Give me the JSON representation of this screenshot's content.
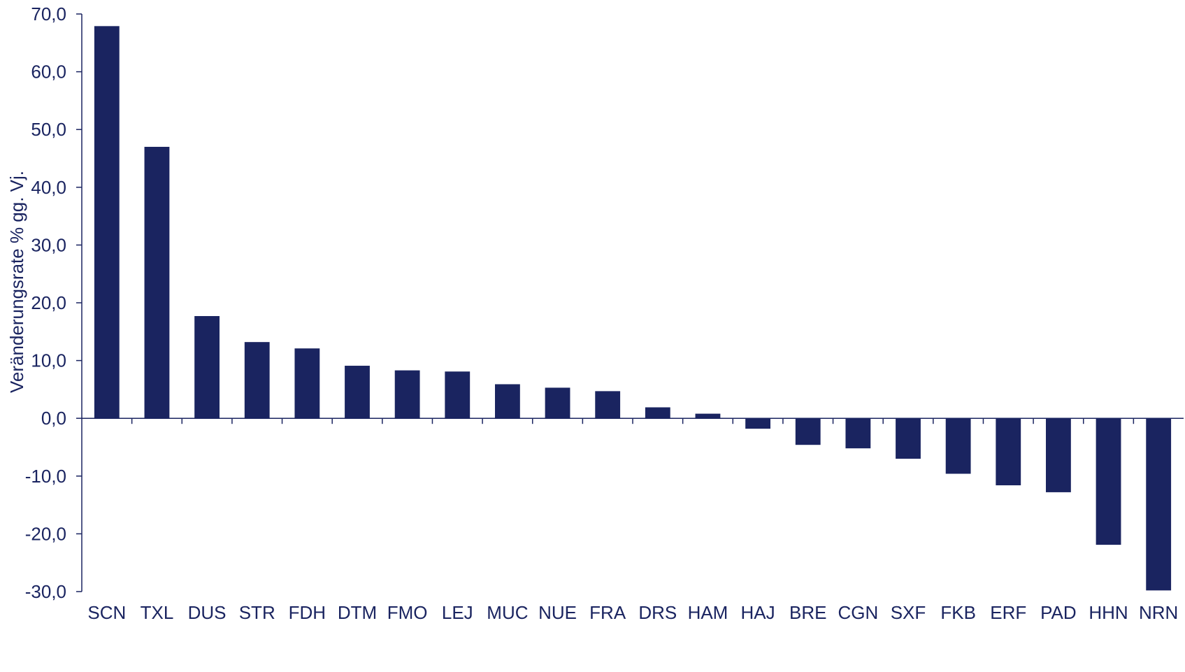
{
  "chart_data": {
    "type": "bar",
    "xlabel": "",
    "ylabel": "Veränderungsrate % gg. Vj.",
    "ylim": [
      -30,
      70
    ],
    "yticks": [
      -30,
      -20,
      -10,
      0,
      10,
      20,
      30,
      40,
      50,
      60,
      70
    ],
    "ytick_labels": [
      "-30,0",
      "-20,0",
      "-10,0",
      "0,0",
      "10,0",
      "20,0",
      "30,0",
      "40,0",
      "50,0",
      "60,0",
      "70,0"
    ],
    "grid": false,
    "categories": [
      "SCN",
      "TXL",
      "DUS",
      "STR",
      "FDH",
      "DTM",
      "FMO",
      "LEJ",
      "MUC",
      "NUE",
      "FRA",
      "DRS",
      "HAM",
      "HAJ",
      "BRE",
      "CGN",
      "SXF",
      "FKB",
      "ERF",
      "PAD",
      "HHN",
      "NRN"
    ],
    "values": [
      67.9,
      47.0,
      17.7,
      13.2,
      12.1,
      9.1,
      8.3,
      8.1,
      5.9,
      5.3,
      4.7,
      1.9,
      0.8,
      -1.8,
      -4.6,
      -5.2,
      -7.0,
      -9.6,
      -11.6,
      -12.8,
      -21.9,
      -29.8
    ],
    "bar_color": "#1a2460"
  }
}
